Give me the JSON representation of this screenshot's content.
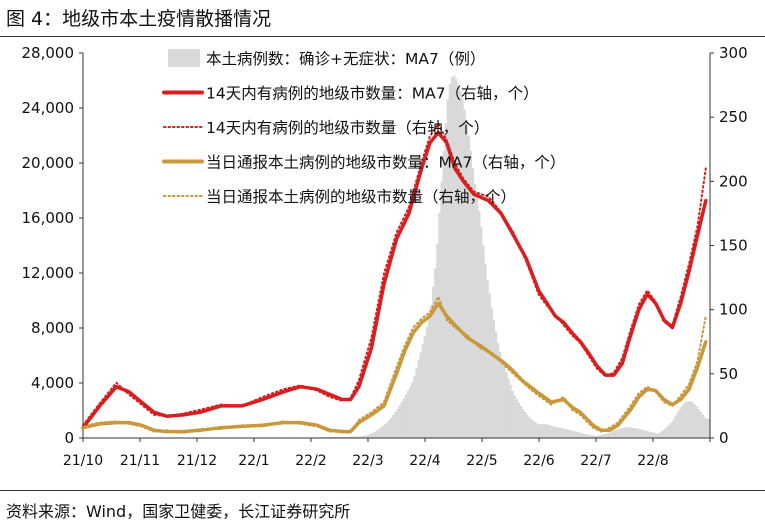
{
  "figure": {
    "title": "图 4：地级市本土疫情散播情况",
    "source": "资料来源：Wind，国家卫健委，长江证券研究所"
  },
  "chart_data": {
    "type": "bar+line",
    "x_ticks": [
      "21/10",
      "21/11",
      "21/12",
      "22/1",
      "22/2",
      "22/3",
      "22/4",
      "22/5",
      "22/6",
      "22/7",
      "22/8"
    ],
    "left_axis": {
      "ylim": [
        0,
        28000
      ],
      "ticks": [
        "0",
        "4,000",
        "8,000",
        "12,000",
        "16,000",
        "20,000",
        "24,000",
        "28,000"
      ]
    },
    "right_axis": {
      "ylim": [
        0,
        300
      ],
      "ticks": [
        "0",
        "50",
        "100",
        "150",
        "200",
        "250",
        "300"
      ]
    },
    "legend": [
      {
        "name": "本土病例数：确诊+无症状：MA7（例）",
        "style": "bar",
        "color": "#d9d9d9"
      },
      {
        "name": "14天内有病例的地级市数量：MA7（右轴，个）",
        "style": "line",
        "color": "#d81e1e"
      },
      {
        "name": "14天内有病例的地级市数量（右轴，个）",
        "style": "dotted",
        "color": "#d81e1e"
      },
      {
        "name": "当日通报本土病例的地级市数量：MA7（右轴，个）",
        "style": "line",
        "color": "#c8983a"
      },
      {
        "name": "当日通报本土病例的地级市数量（右轴，个）",
        "style": "dotted",
        "color": "#c8983a"
      }
    ],
    "series": [
      {
        "name": "本土病例数：确诊+无症状：MA7（例）",
        "axis": "left",
        "kind": "bar",
        "color": "#d9d9d9",
        "points": [
          [
            0,
            0
          ],
          [
            10,
            10
          ],
          [
            20,
            30
          ],
          [
            30,
            20
          ],
          [
            40,
            10
          ],
          [
            60,
            10
          ],
          [
            80,
            20
          ],
          [
            100,
            30
          ],
          [
            110,
            40
          ],
          [
            118,
            60
          ],
          [
            124,
            80
          ],
          [
            132,
            100
          ],
          [
            136,
            200
          ],
          [
            139,
            400
          ],
          [
            142,
            700
          ],
          [
            146,
            1200
          ],
          [
            150,
            2000
          ],
          [
            154,
            3000
          ],
          [
            158,
            4200
          ],
          [
            162,
            6500
          ],
          [
            166,
            9000
          ],
          [
            169,
            13000
          ],
          [
            171,
            17500
          ],
          [
            173,
            22000
          ],
          [
            175,
            25500
          ],
          [
            177,
            26500
          ],
          [
            179,
            26000
          ],
          [
            181,
            25000
          ],
          [
            183,
            23500
          ],
          [
            185,
            21500
          ],
          [
            187,
            19000
          ],
          [
            190,
            16000
          ],
          [
            193,
            12000
          ],
          [
            196,
            9000
          ],
          [
            199,
            6500
          ],
          [
            202,
            5000
          ],
          [
            206,
            3200
          ],
          [
            210,
            2200
          ],
          [
            214,
            1400
          ],
          [
            218,
            1000
          ],
          [
            222,
            1000
          ],
          [
            226,
            800
          ],
          [
            230,
            700
          ],
          [
            235,
            500
          ],
          [
            240,
            300
          ],
          [
            245,
            150
          ],
          [
            250,
            300
          ],
          [
            255,
            600
          ],
          [
            260,
            800
          ],
          [
            265,
            700
          ],
          [
            270,
            500
          ],
          [
            275,
            300
          ],
          [
            278,
            600
          ],
          [
            282,
            1200
          ],
          [
            285,
            2000
          ],
          [
            288,
            2600
          ],
          [
            291,
            2700
          ],
          [
            293,
            2400
          ],
          [
            296,
            1800
          ],
          [
            298,
            1400
          ]
        ]
      },
      {
        "name": "14天内有病例的地级市数量：MA7（右轴，个）",
        "axis": "right",
        "kind": "line",
        "color": "#d81e1e",
        "points": [
          [
            0,
            8
          ],
          [
            8,
            25
          ],
          [
            16,
            40
          ],
          [
            22,
            36
          ],
          [
            28,
            28
          ],
          [
            34,
            20
          ],
          [
            40,
            17
          ],
          [
            48,
            18
          ],
          [
            56,
            20
          ],
          [
            66,
            25
          ],
          [
            76,
            25
          ],
          [
            86,
            30
          ],
          [
            96,
            36
          ],
          [
            104,
            40
          ],
          [
            112,
            38
          ],
          [
            118,
            34
          ],
          [
            124,
            30
          ],
          [
            128,
            30
          ],
          [
            132,
            40
          ],
          [
            138,
            70
          ],
          [
            144,
            120
          ],
          [
            150,
            155
          ],
          [
            156,
            175
          ],
          [
            162,
            210
          ],
          [
            166,
            230
          ],
          [
            170,
            238
          ],
          [
            174,
            230
          ],
          [
            178,
            210
          ],
          [
            182,
            200
          ],
          [
            187,
            190
          ],
          [
            194,
            185
          ],
          [
            200,
            175
          ],
          [
            206,
            158
          ],
          [
            212,
            140
          ],
          [
            218,
            115
          ],
          [
            222,
            105
          ],
          [
            226,
            95
          ],
          [
            230,
            90
          ],
          [
            234,
            82
          ],
          [
            238,
            75
          ],
          [
            242,
            66
          ],
          [
            246,
            56
          ],
          [
            250,
            49
          ],
          [
            254,
            49
          ],
          [
            258,
            58
          ],
          [
            262,
            80
          ],
          [
            266,
            100
          ],
          [
            270,
            112
          ],
          [
            274,
            105
          ],
          [
            278,
            92
          ],
          [
            282,
            86
          ],
          [
            286,
            105
          ],
          [
            290,
            130
          ],
          [
            294,
            158
          ],
          [
            298,
            185
          ]
        ]
      },
      {
        "name": "当日通报本土病例的地级市数量：MA7（右轴，个）",
        "axis": "right",
        "kind": "line",
        "color": "#c8983a",
        "points": [
          [
            0,
            8
          ],
          [
            8,
            11
          ],
          [
            16,
            12
          ],
          [
            22,
            12
          ],
          [
            28,
            10
          ],
          [
            34,
            6
          ],
          [
            40,
            5
          ],
          [
            48,
            5
          ],
          [
            56,
            6
          ],
          [
            66,
            8
          ],
          [
            76,
            9
          ],
          [
            86,
            10
          ],
          [
            96,
            12
          ],
          [
            104,
            12
          ],
          [
            112,
            10
          ],
          [
            118,
            6
          ],
          [
            124,
            5
          ],
          [
            128,
            5
          ],
          [
            132,
            12
          ],
          [
            138,
            18
          ],
          [
            144,
            25
          ],
          [
            150,
            50
          ],
          [
            154,
            68
          ],
          [
            158,
            82
          ],
          [
            162,
            90
          ],
          [
            166,
            95
          ],
          [
            170,
            105
          ],
          [
            174,
            95
          ],
          [
            178,
            88
          ],
          [
            184,
            78
          ],
          [
            190,
            72
          ],
          [
            196,
            65
          ],
          [
            202,
            58
          ],
          [
            206,
            52
          ],
          [
            210,
            45
          ],
          [
            214,
            40
          ],
          [
            218,
            35
          ],
          [
            224,
            28
          ],
          [
            230,
            30
          ],
          [
            234,
            24
          ],
          [
            238,
            20
          ],
          [
            244,
            10
          ],
          [
            248,
            6
          ],
          [
            252,
            6
          ],
          [
            256,
            10
          ],
          [
            262,
            22
          ],
          [
            266,
            32
          ],
          [
            270,
            38
          ],
          [
            274,
            37
          ],
          [
            278,
            30
          ],
          [
            282,
            26
          ],
          [
            286,
            30
          ],
          [
            290,
            38
          ],
          [
            294,
            55
          ],
          [
            298,
            75
          ]
        ]
      },
      {
        "name": "14天内有病例的地级市数量（右轴，个）",
        "axis": "right",
        "kind": "dotted",
        "color": "#d81e1e",
        "points": [
          [
            0,
            10
          ],
          [
            8,
            27
          ],
          [
            16,
            43
          ],
          [
            22,
            34
          ],
          [
            28,
            26
          ],
          [
            34,
            18
          ],
          [
            40,
            17
          ],
          [
            48,
            19
          ],
          [
            56,
            22
          ],
          [
            66,
            26
          ],
          [
            76,
            25
          ],
          [
            86,
            32
          ],
          [
            96,
            38
          ],
          [
            104,
            41
          ],
          [
            112,
            37
          ],
          [
            118,
            32
          ],
          [
            124,
            29
          ],
          [
            128,
            31
          ],
          [
            132,
            45
          ],
          [
            138,
            78
          ],
          [
            144,
            128
          ],
          [
            150,
            160
          ],
          [
            156,
            180
          ],
          [
            162,
            215
          ],
          [
            166,
            235
          ],
          [
            170,
            245
          ],
          [
            174,
            232
          ],
          [
            178,
            214
          ],
          [
            182,
            202
          ],
          [
            187,
            192
          ],
          [
            194,
            188
          ],
          [
            200,
            176
          ],
          [
            206,
            160
          ],
          [
            212,
            138
          ],
          [
            218,
            112
          ],
          [
            222,
            103
          ],
          [
            226,
            96
          ],
          [
            230,
            88
          ],
          [
            234,
            80
          ],
          [
            238,
            74
          ],
          [
            242,
            64
          ],
          [
            246,
            54
          ],
          [
            250,
            48
          ],
          [
            254,
            51
          ],
          [
            258,
            62
          ],
          [
            262,
            84
          ],
          [
            266,
            104
          ],
          [
            270,
            115
          ],
          [
            274,
            106
          ],
          [
            278,
            90
          ],
          [
            282,
            88
          ],
          [
            286,
            110
          ],
          [
            290,
            136
          ],
          [
            294,
            165
          ],
          [
            298,
            210
          ]
        ]
      },
      {
        "name": "当日通报本土病例的地级市数量（右轴，个）",
        "axis": "right",
        "kind": "dotted",
        "color": "#c8983a",
        "points": [
          [
            0,
            9
          ],
          [
            8,
            12
          ],
          [
            16,
            13
          ],
          [
            22,
            11
          ],
          [
            28,
            9
          ],
          [
            34,
            5
          ],
          [
            40,
            6
          ],
          [
            48,
            4
          ],
          [
            56,
            7
          ],
          [
            66,
            7
          ],
          [
            76,
            10
          ],
          [
            86,
            9
          ],
          [
            96,
            13
          ],
          [
            104,
            11
          ],
          [
            112,
            9
          ],
          [
            118,
            5
          ],
          [
            124,
            6
          ],
          [
            128,
            4
          ],
          [
            132,
            14
          ],
          [
            138,
            20
          ],
          [
            144,
            28
          ],
          [
            150,
            55
          ],
          [
            154,
            72
          ],
          [
            158,
            86
          ],
          [
            162,
            93
          ],
          [
            166,
            98
          ],
          [
            170,
            110
          ],
          [
            174,
            92
          ],
          [
            178,
            86
          ],
          [
            184,
            80
          ],
          [
            190,
            70
          ],
          [
            196,
            66
          ],
          [
            202,
            56
          ],
          [
            206,
            50
          ],
          [
            210,
            44
          ],
          [
            214,
            38
          ],
          [
            218,
            33
          ],
          [
            224,
            26
          ],
          [
            230,
            32
          ],
          [
            234,
            22
          ],
          [
            238,
            18
          ],
          [
            244,
            8
          ],
          [
            248,
            5
          ],
          [
            252,
            8
          ],
          [
            256,
            12
          ],
          [
            262,
            25
          ],
          [
            266,
            35
          ],
          [
            270,
            40
          ],
          [
            274,
            36
          ],
          [
            278,
            28
          ],
          [
            282,
            25
          ],
          [
            286,
            33
          ],
          [
            290,
            42
          ],
          [
            294,
            60
          ],
          [
            298,
            95
          ]
        ]
      }
    ]
  }
}
